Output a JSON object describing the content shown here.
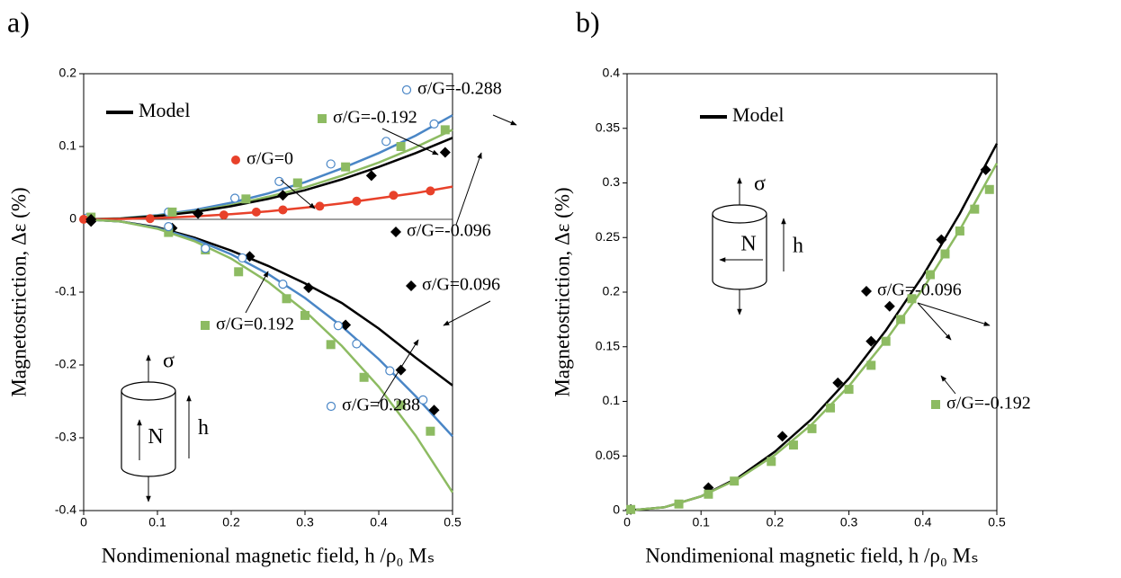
{
  "chart_data": [
    {
      "type": "scatter",
      "panel_label": "a)",
      "xlabel": "Nondimenional magnetic field, h /ρ₀ Mₛ",
      "ylabel": "Magnetostriction, Δε (%)",
      "xlim": [
        0,
        0.5
      ],
      "ylim": [
        -0.4,
        0.2
      ],
      "xticks": [
        0,
        0.1,
        0.2,
        0.3,
        0.4,
        0.5
      ],
      "yticks": [
        -0.4,
        -0.3,
        -0.2,
        -0.1,
        0,
        0.1,
        0.2
      ],
      "zero_line": true,
      "legend": {
        "name": "Model",
        "color": "#000000"
      },
      "model_x": [
        0,
        0.05,
        0.1,
        0.15,
        0.2,
        0.25,
        0.3,
        0.35,
        0.4,
        0.45,
        0.5
      ],
      "model_curves": [
        {
          "color": "#4a86c6",
          "values": [
            0,
            0.0014,
            0.0057,
            0.0128,
            0.0228,
            0.0356,
            0.051,
            0.07,
            0.091,
            0.115,
            0.143
          ]
        },
        {
          "color": "#8dbb62",
          "values": [
            0,
            0.0012,
            0.0049,
            0.011,
            0.0196,
            0.031,
            0.044,
            0.06,
            0.078,
            0.099,
            0.123
          ]
        },
        {
          "color": "#000000",
          "values": [
            0,
            0.001,
            0.0045,
            0.01,
            0.018,
            0.028,
            0.04,
            0.055,
            0.072,
            0.091,
            0.112
          ]
        },
        {
          "color": "#e8412a",
          "values": [
            0,
            0.0005,
            0.0018,
            0.004,
            0.0072,
            0.011,
            0.016,
            0.022,
            0.029,
            0.036,
            0.045
          ]
        },
        {
          "color": "#000000",
          "values": [
            0,
            -0.003,
            -0.011,
            -0.025,
            -0.043,
            -0.064,
            -0.088,
            -0.115,
            -0.15,
            -0.19,
            -0.228
          ]
        },
        {
          "color": "#4a86c6",
          "values": [
            0,
            -0.003,
            -0.012,
            -0.027,
            -0.048,
            -0.075,
            -0.108,
            -0.147,
            -0.192,
            -0.243,
            -0.298
          ]
        },
        {
          "color": "#8dbb62",
          "values": [
            0,
            -0.003,
            -0.013,
            -0.03,
            -0.054,
            -0.086,
            -0.126,
            -0.174,
            -0.23,
            -0.297,
            -0.375
          ]
        }
      ],
      "series": [
        {
          "name": "σ/G=-0.288",
          "color": "#4a86c6",
          "marker": "circle-open",
          "x": [
            0.005,
            0.115,
            0.205,
            0.265,
            0.335,
            0.41,
            0.475
          ],
          "values": [
            0.002,
            0.01,
            0.029,
            0.052,
            0.076,
            0.107,
            0.131
          ]
        },
        {
          "name": "σ/G=-0.192",
          "color": "#8dbb62",
          "marker": "square",
          "x": [
            0.01,
            0.12,
            0.22,
            0.29,
            0.355,
            0.43,
            0.49
          ],
          "values": [
            0.003,
            0.01,
            0.028,
            0.05,
            0.072,
            0.1,
            0.123
          ]
        },
        {
          "name": "σ/G=0",
          "color": "#e8412a",
          "marker": "circle",
          "x": [
            0,
            0.09,
            0.19,
            0.234,
            0.27,
            0.32,
            0.37,
            0.42,
            0.47
          ],
          "values": [
            0,
            0.001,
            0.006,
            0.01,
            0.013,
            0.018,
            0.025,
            0.033,
            0.039
          ]
        },
        {
          "name": "σ/G=-0.096",
          "color": "#000000",
          "marker": "diamond",
          "x": [
            0.01,
            0.155,
            0.27,
            0.39,
            0.49
          ],
          "values": [
            0,
            0.008,
            0.033,
            0.06,
            0.092
          ]
        },
        {
          "name": "σ/G=0.096",
          "color": "#000000",
          "marker": "diamond",
          "x": [
            0.01,
            0.12,
            0.225,
            0.305,
            0.355,
            0.43,
            0.475
          ],
          "values": [
            -0.003,
            -0.012,
            -0.051,
            -0.094,
            -0.145,
            -0.207,
            -0.262
          ]
        },
        {
          "name": "σ/G=0.192",
          "color": "#8dbb62",
          "marker": "square",
          "x": [
            0.115,
            0.165,
            0.21,
            0.275,
            0.3,
            0.335,
            0.38,
            0.43,
            0.47
          ],
          "values": [
            -0.018,
            -0.042,
            -0.072,
            -0.109,
            -0.132,
            -0.172,
            -0.217,
            -0.255,
            -0.291
          ]
        },
        {
          "name": "σ/G=0.288",
          "color": "#4a86c6",
          "marker": "circle-open",
          "x": [
            0.115,
            0.165,
            0.215,
            0.27,
            0.345,
            0.37,
            0.415,
            0.46
          ],
          "values": [
            -0.01,
            -0.04,
            -0.053,
            -0.089,
            -0.146,
            -0.171,
            -0.208,
            -0.248
          ]
        }
      ],
      "inset": {
        "stress": "σ",
        "pole": "N",
        "field": "h"
      }
    },
    {
      "type": "scatter",
      "panel_label": "b)",
      "xlabel": "Nondimenional magnetic field, h /ρ₀ Mₛ",
      "ylabel": "Magnetostriction, Δε (%)",
      "xlim": [
        0,
        0.5
      ],
      "ylim": [
        0,
        0.4
      ],
      "xticks": [
        0,
        0.1,
        0.2,
        0.3,
        0.4,
        0.5
      ],
      "yticks": [
        0,
        0.05,
        0.1,
        0.15,
        0.2,
        0.25,
        0.3,
        0.35,
        0.4
      ],
      "zero_line": false,
      "legend": {
        "name": "Model",
        "color": "#000000"
      },
      "model_x": [
        0,
        0.05,
        0.1,
        0.15,
        0.2,
        0.25,
        0.3,
        0.35,
        0.4,
        0.45,
        0.5
      ],
      "model_curves": [
        {
          "color": "#000000",
          "values": [
            0,
            0.003,
            0.013,
            0.03,
            0.054,
            0.084,
            0.121,
            0.165,
            0.215,
            0.272,
            0.336
          ]
        },
        {
          "color": "#8dbb62",
          "values": [
            0,
            0.003,
            0.013,
            0.029,
            0.051,
            0.079,
            0.114,
            0.156,
            0.203,
            0.257,
            0.318
          ]
        }
      ],
      "series": [
        {
          "name": "σ/G=-0.096",
          "color": "#000000",
          "marker": "diamond",
          "x": [
            0.005,
            0.11,
            0.21,
            0.285,
            0.33,
            0.355,
            0.425,
            0.485
          ],
          "values": [
            0.001,
            0.021,
            0.068,
            0.117,
            0.155,
            0.187,
            0.248,
            0.312
          ]
        },
        {
          "name": "σ/G=-0.192",
          "color": "#8dbb62",
          "marker": "square",
          "x": [
            0.005,
            0.07,
            0.11,
            0.145,
            0.195,
            0.225,
            0.25,
            0.275,
            0.3,
            0.33,
            0.35,
            0.37,
            0.385,
            0.41,
            0.43,
            0.45,
            0.47,
            0.49
          ],
          "values": [
            0.001,
            0.006,
            0.015,
            0.027,
            0.045,
            0.06,
            0.075,
            0.094,
            0.111,
            0.133,
            0.155,
            0.175,
            0.194,
            0.216,
            0.235,
            0.256,
            0.276,
            0.294
          ]
        }
      ],
      "inset": {
        "stress": "σ",
        "pole": "N",
        "field": "h"
      }
    }
  ]
}
